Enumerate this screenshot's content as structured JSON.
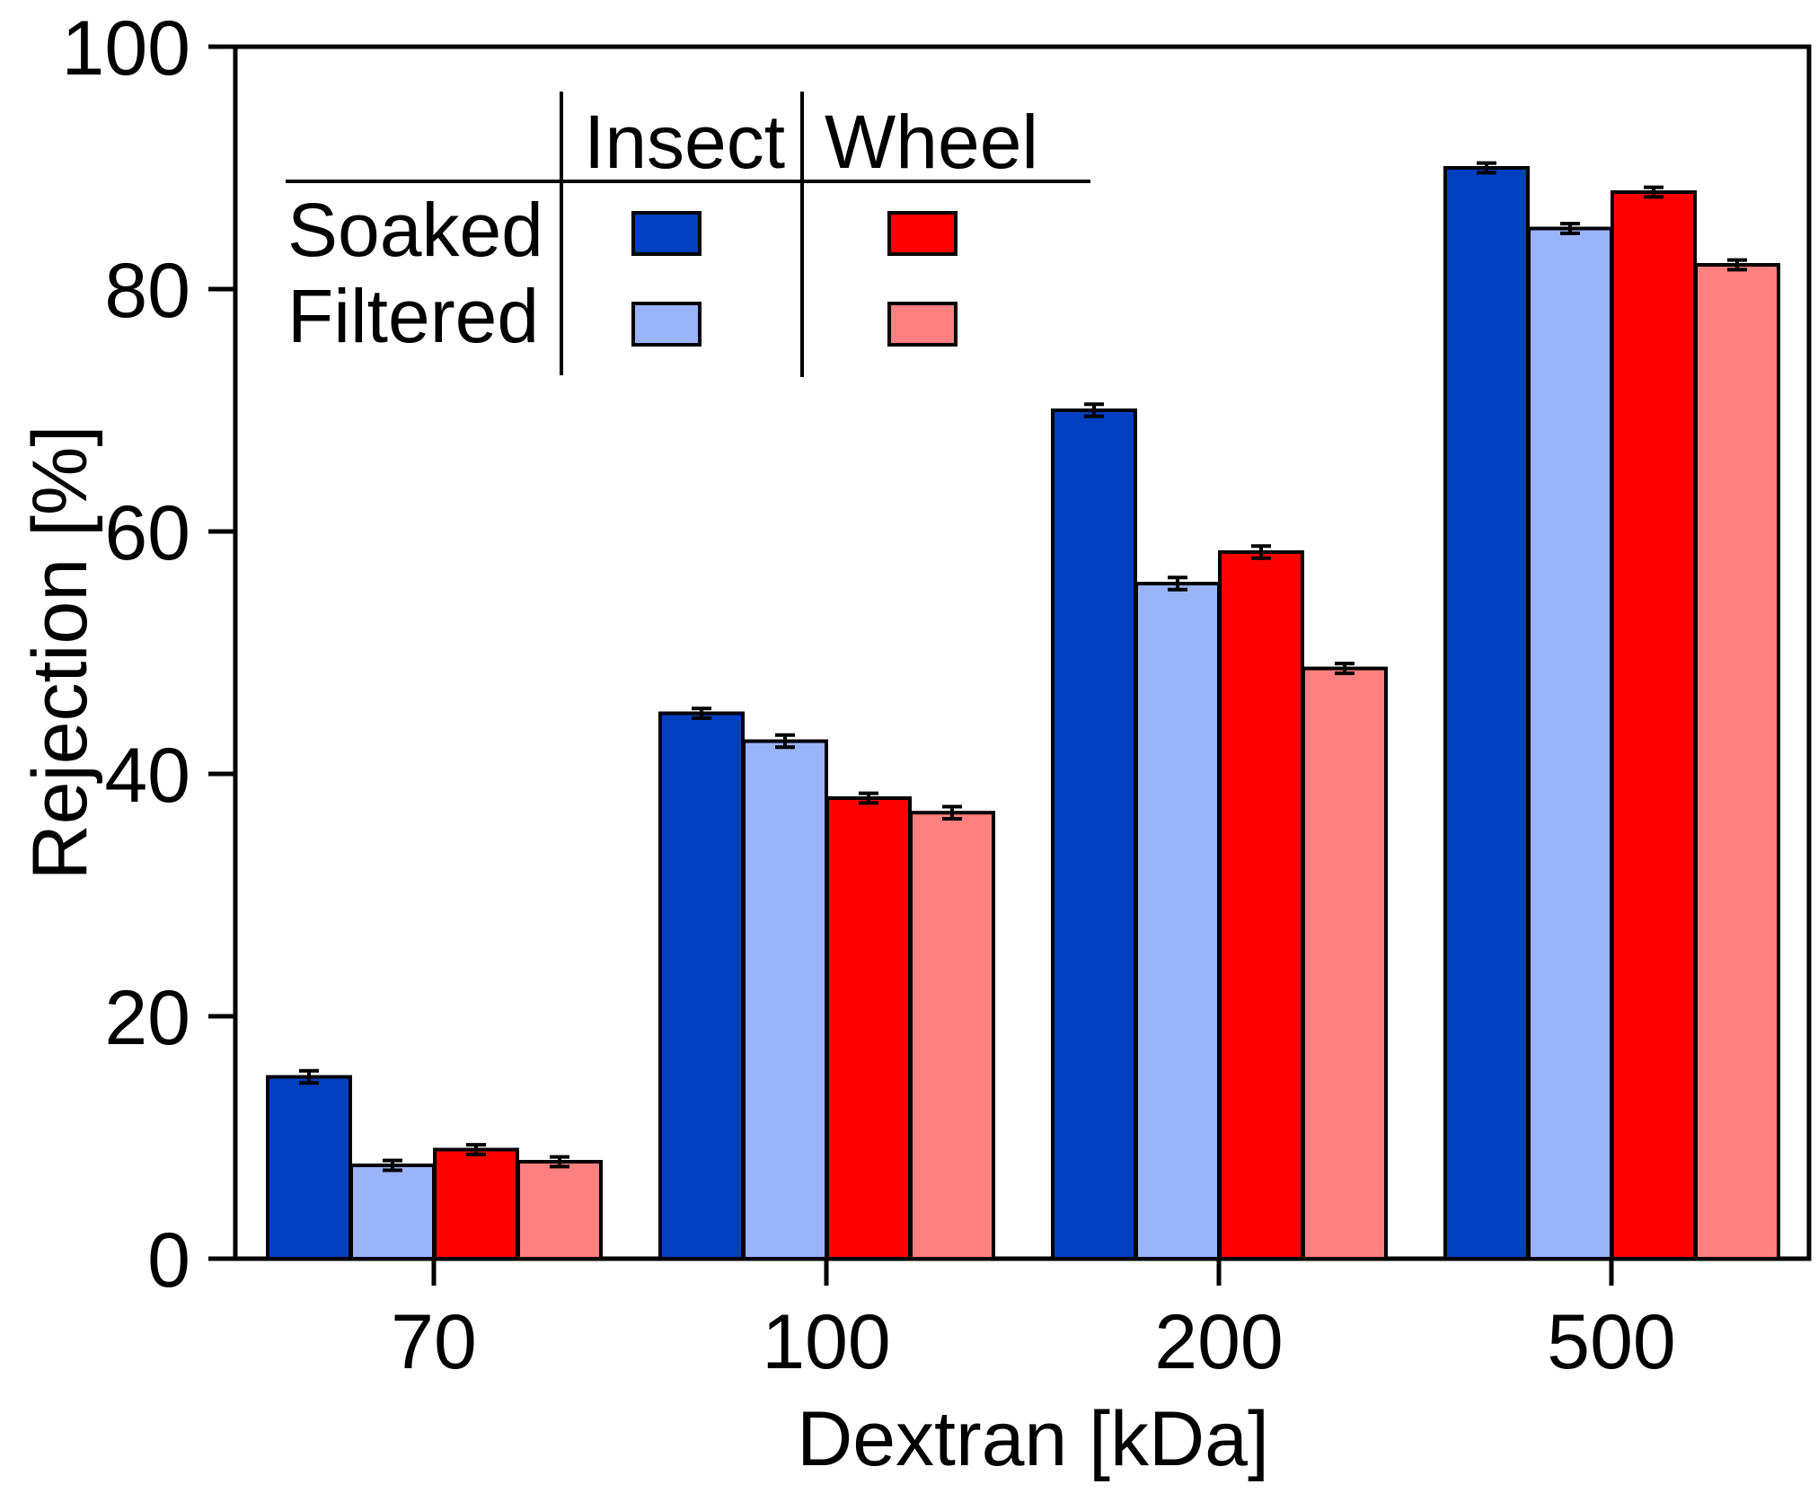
{
  "chart_data": {
    "type": "bar",
    "title": "",
    "xlabel": "Dextran [kDa]",
    "ylabel": "Rejection [%]",
    "ylim": [
      0,
      100
    ],
    "yticks": [
      0,
      20,
      40,
      60,
      80,
      100
    ],
    "categories": [
      "70",
      "100",
      "200",
      "500"
    ],
    "series": [
      {
        "key": "insect_soaked",
        "name": "Insect Soaked",
        "color": "#0040C0",
        "values": [
          15,
          45,
          70,
          90
        ],
        "errors": [
          0.5,
          0.4,
          0.5,
          0.4
        ]
      },
      {
        "key": "insect_filtered",
        "name": "Insect Filtered",
        "color": "#9BB3FB",
        "values": [
          7.7,
          42.7,
          55.7,
          85
        ],
        "errors": [
          0.4,
          0.5,
          0.5,
          0.4
        ]
      },
      {
        "key": "wheel_soaked",
        "name": "Wheel Soaked",
        "color": "#FF0000",
        "values": [
          9,
          38,
          58.3,
          88
        ],
        "errors": [
          0.4,
          0.4,
          0.5,
          0.4
        ]
      },
      {
        "key": "wheel_filtered",
        "name": "Wheel Filtered",
        "color": "#FF8080",
        "values": [
          8,
          36.8,
          48.7,
          82
        ],
        "errors": [
          0.4,
          0.5,
          0.4,
          0.4
        ]
      }
    ],
    "legend": {
      "placement": "top-left",
      "columns": [
        "Insect",
        "Wheel"
      ],
      "rows": [
        "Soaked",
        "Filtered"
      ]
    },
    "grid": false
  }
}
